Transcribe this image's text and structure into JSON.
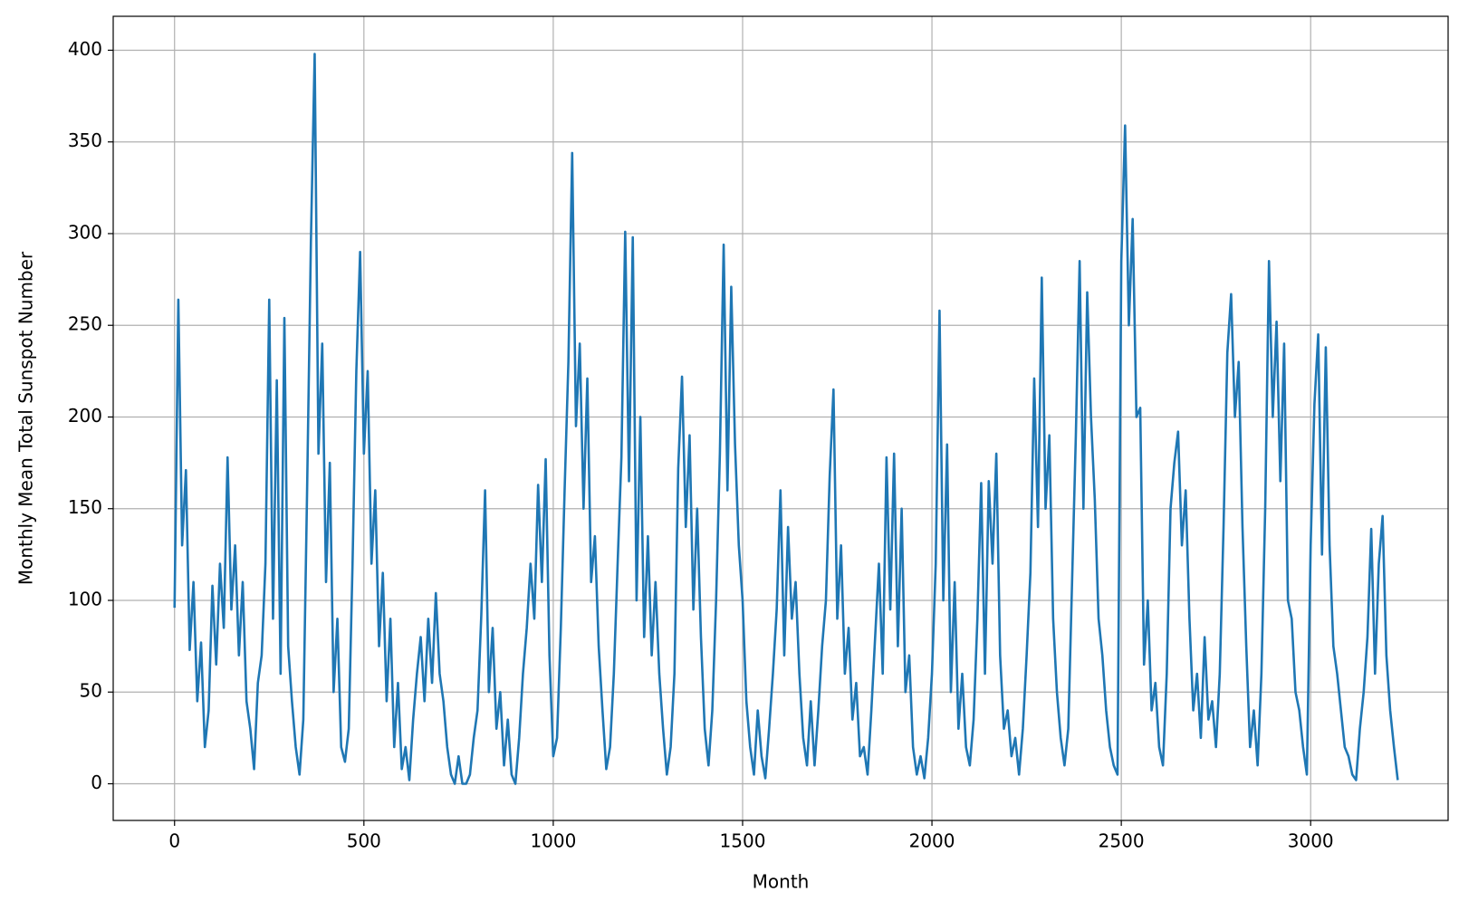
{
  "chart_data": {
    "type": "line",
    "xlabel": "Month",
    "ylabel": "Monthly Mean Total Sunspot Number",
    "x": [
      0,
      10,
      20,
      30,
      40,
      50,
      60,
      70,
      80,
      90,
      100,
      110,
      120,
      130,
      140,
      150,
      160,
      170,
      180,
      190,
      200,
      210,
      220,
      230,
      240,
      250,
      260,
      270,
      280,
      290,
      300,
      310,
      320,
      330,
      340,
      350,
      360,
      370,
      380,
      390,
      400,
      410,
      420,
      430,
      440,
      450,
      460,
      470,
      480,
      490,
      500,
      510,
      520,
      530,
      540,
      550,
      560,
      570,
      580,
      590,
      600,
      610,
      620,
      630,
      640,
      650,
      660,
      670,
      680,
      690,
      700,
      710,
      720,
      730,
      740,
      750,
      760,
      770,
      780,
      790,
      800,
      810,
      820,
      830,
      840,
      850,
      860,
      870,
      880,
      890,
      900,
      910,
      920,
      930,
      940,
      950,
      960,
      970,
      980,
      990,
      1000,
      1010,
      1020,
      1030,
      1040,
      1050,
      1060,
      1070,
      1080,
      1090,
      1100,
      1110,
      1120,
      1130,
      1140,
      1150,
      1160,
      1170,
      1180,
      1190,
      1200,
      1210,
      1220,
      1230,
      1240,
      1250,
      1260,
      1270,
      1280,
      1290,
      1300,
      1310,
      1320,
      1330,
      1340,
      1350,
      1360,
      1370,
      1380,
      1390,
      1400,
      1410,
      1420,
      1430,
      1440,
      1450,
      1460,
      1470,
      1480,
      1490,
      1500,
      1510,
      1520,
      1530,
      1540,
      1550,
      1560,
      1570,
      1580,
      1590,
      1600,
      1610,
      1620,
      1630,
      1640,
      1650,
      1660,
      1670,
      1680,
      1690,
      1700,
      1710,
      1720,
      1730,
      1740,
      1750,
      1760,
      1770,
      1780,
      1790,
      1800,
      1810,
      1820,
      1830,
      1840,
      1850,
      1860,
      1870,
      1880,
      1890,
      1900,
      1910,
      1920,
      1930,
      1940,
      1950,
      1960,
      1970,
      1980,
      1990,
      2000,
      2010,
      2020,
      2030,
      2040,
      2050,
      2060,
      2070,
      2080,
      2090,
      2100,
      2110,
      2120,
      2130,
      2140,
      2150,
      2160,
      2170,
      2180,
      2190,
      2200,
      2210,
      2220,
      2230,
      2240,
      2250,
      2260,
      2270,
      2280,
      2290,
      2300,
      2310,
      2320,
      2330,
      2340,
      2350,
      2360,
      2370,
      2380,
      2390,
      2400,
      2410,
      2420,
      2430,
      2440,
      2450,
      2460,
      2470,
      2480,
      2490,
      2500,
      2510,
      2520,
      2530,
      2540,
      2550,
      2560,
      2570,
      2580,
      2590,
      2600,
      2610,
      2620,
      2630,
      2640,
      2650,
      2660,
      2670,
      2680,
      2690,
      2700,
      2710,
      2720,
      2730,
      2740,
      2750,
      2760,
      2770,
      2780,
      2790,
      2800,
      2810,
      2820,
      2830,
      2840,
      2850,
      2860,
      2870,
      2880,
      2890,
      2900,
      2910,
      2920,
      2930,
      2940,
      2950,
      2960,
      2970,
      2980,
      2990,
      3000,
      3010,
      3020,
      3030,
      3040,
      3050,
      3060,
      3070,
      3080,
      3090,
      3100,
      3110,
      3120,
      3130,
      3140,
      3150,
      3160,
      3170,
      3180,
      3190,
      3200,
      3210,
      3220,
      3230
    ],
    "series": [
      {
        "color": "#1f77b4",
        "values": [
          96,
          264,
          130,
          171,
          73,
          110,
          45,
          77,
          20,
          40,
          108,
          65,
          120,
          85,
          178,
          95,
          130,
          70,
          110,
          45,
          30,
          8,
          55,
          70,
          120,
          264,
          90,
          220,
          60,
          254,
          75,
          45,
          20,
          5,
          35,
          160,
          295,
          398,
          180,
          240,
          110,
          175,
          50,
          90,
          20,
          12,
          30,
          120,
          225,
          290,
          180,
          225,
          120,
          160,
          75,
          115,
          45,
          90,
          20,
          55,
          8,
          20,
          2,
          35,
          60,
          80,
          45,
          90,
          55,
          104,
          60,
          45,
          20,
          5,
          0,
          15,
          0,
          0,
          5,
          25,
          40,
          92,
          160,
          50,
          85,
          30,
          50,
          10,
          35,
          5,
          0,
          25,
          60,
          85,
          120,
          90,
          163,
          110,
          177,
          70,
          15,
          25,
          85,
          160,
          230,
          344,
          195,
          240,
          150,
          221,
          110,
          135,
          75,
          40,
          8,
          20,
          60,
          120,
          178,
          301,
          165,
          298,
          100,
          200,
          80,
          135,
          70,
          110,
          60,
          30,
          5,
          20,
          60,
          172,
          222,
          140,
          190,
          95,
          150,
          80,
          30,
          10,
          40,
          100,
          180,
          294,
          160,
          271,
          185,
          130,
          100,
          45,
          20,
          5,
          40,
          15,
          3,
          30,
          60,
          95,
          160,
          70,
          140,
          90,
          110,
          60,
          25,
          10,
          45,
          10,
          40,
          75,
          100,
          168,
          215,
          90,
          130,
          60,
          85,
          35,
          55,
          15,
          20,
          5,
          40,
          80,
          120,
          60,
          178,
          95,
          180,
          75,
          150,
          50,
          70,
          20,
          5,
          15,
          3,
          25,
          60,
          120,
          258,
          100,
          185,
          50,
          110,
          30,
          60,
          20,
          10,
          35,
          90,
          164,
          60,
          165,
          120,
          180,
          70,
          30,
          40,
          15,
          25,
          5,
          30,
          70,
          115,
          221,
          140,
          276,
          150,
          190,
          90,
          50,
          25,
          10,
          30,
          110,
          190,
          285,
          150,
          268,
          200,
          155,
          90,
          70,
          40,
          20,
          10,
          5,
          285,
          359,
          250,
          308,
          200,
          205,
          65,
          100,
          40,
          55,
          20,
          10,
          60,
          150,
          175,
          192,
          130,
          160,
          90,
          40,
          60,
          25,
          80,
          35,
          45,
          20,
          60,
          140,
          235,
          267,
          200,
          230,
          140,
          75,
          20,
          40,
          10,
          60,
          150,
          285,
          200,
          252,
          165,
          240,
          100,
          90,
          50,
          40,
          20,
          5,
          130,
          207,
          245,
          125,
          238,
          130,
          75,
          60,
          40,
          20,
          15,
          5,
          2,
          30,
          50,
          80,
          139,
          60,
          120,
          146,
          70,
          40,
          20,
          2
        ]
      }
    ],
    "xlim": [
      -162,
      3363
    ],
    "ylim": [
      -20,
      418.5
    ],
    "xticks": [
      0,
      500,
      1000,
      1500,
      2000,
      2500,
      3000
    ],
    "yticks": [
      0,
      50,
      100,
      150,
      200,
      250,
      300,
      350,
      400
    ],
    "grid": true
  }
}
